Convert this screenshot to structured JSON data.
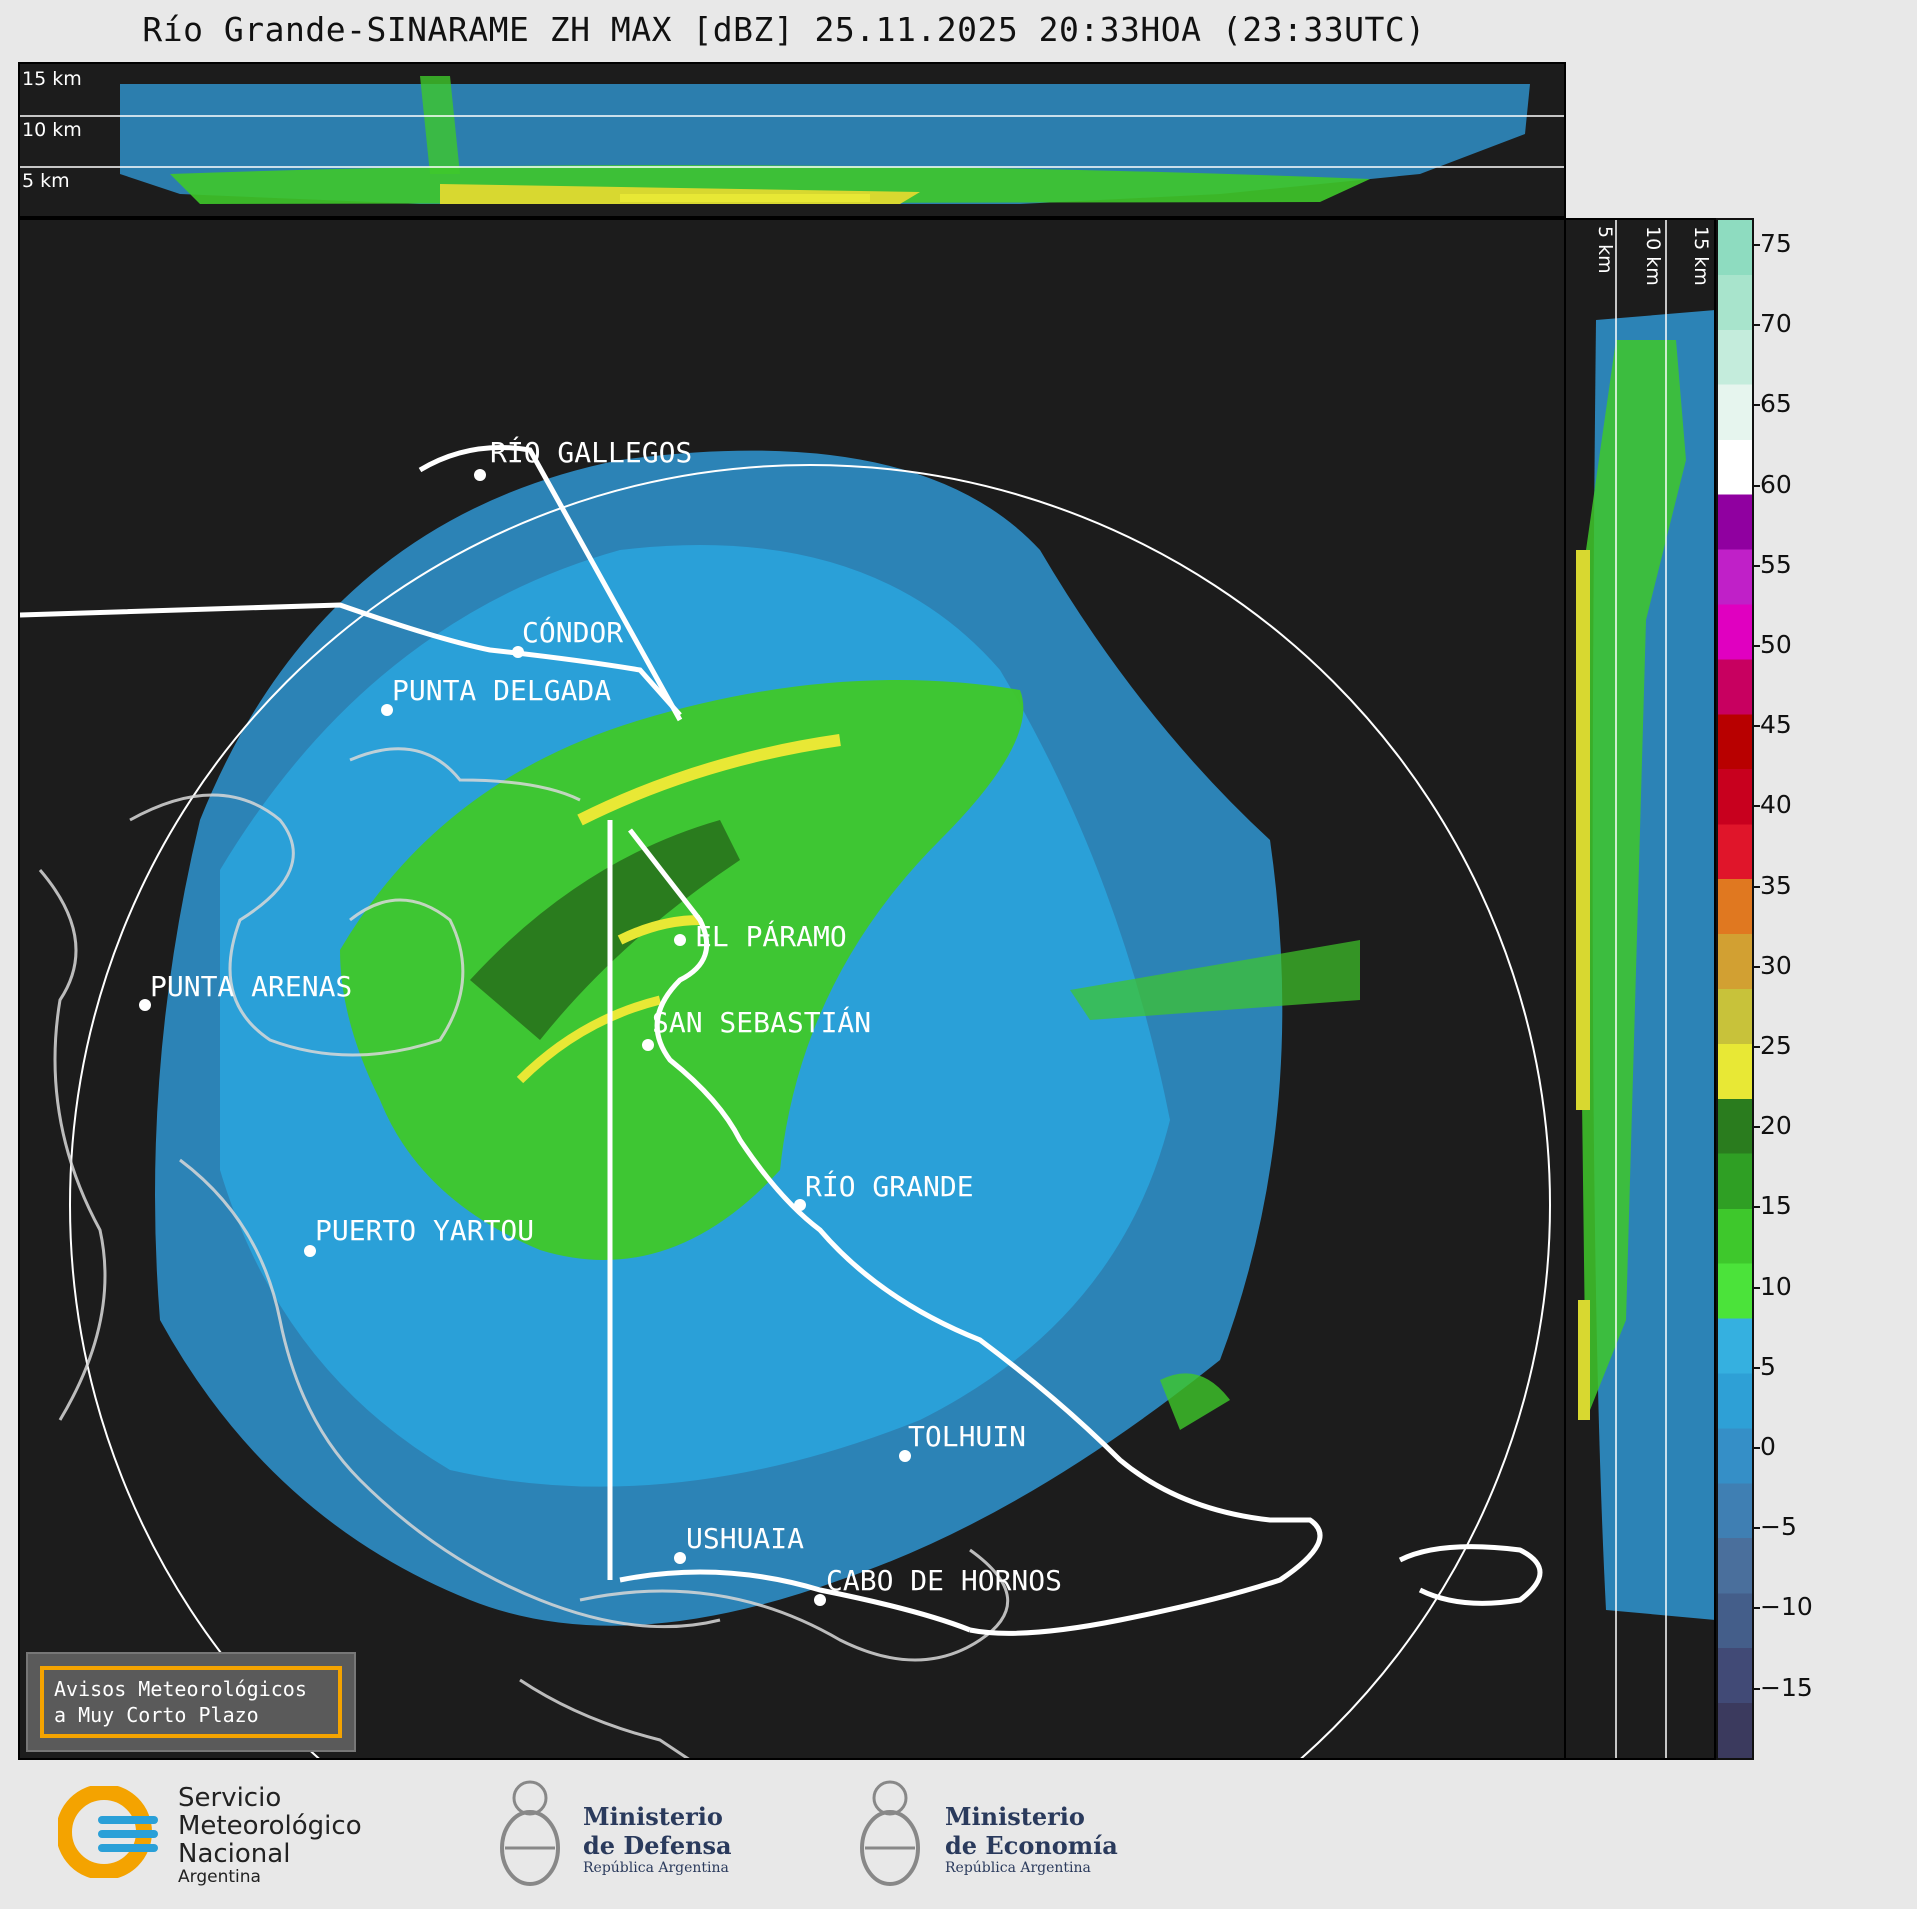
{
  "title": "Río Grande-SINARAME ZH MAX [dBZ] 25.11.2025 20:33HOA (23:33UTC)",
  "height_labels": [
    "15 km",
    "10 km",
    "5 km"
  ],
  "places": [
    "RÍO GALLEGOS",
    "CÓNDOR",
    "PUNTA DELGADA",
    "EL PÁRAMO",
    "PUNTA ARENAS",
    "SAN SEBASTIÁN",
    "RÍO GRANDE",
    "PUERTO YARTOU",
    "TOLHUIN",
    "USHUAIA",
    "CABO DE HORNOS"
  ],
  "colorbar": {
    "label_unit": "dBZ",
    "ticks": [
      "75",
      "70",
      "65",
      "60",
      "55",
      "50",
      "45",
      "40",
      "35",
      "30",
      "25",
      "20",
      "15",
      "10",
      "5",
      "0",
      "−5",
      "−10",
      "−15"
    ],
    "colors": [
      "#3b3a5e",
      "#414a76",
      "#445e8a",
      "#4a6f9c",
      "#3f7fb3",
      "#358fc7",
      "#2ea0d6",
      "#35b0e0",
      "#4be33a",
      "#3ec82c",
      "#2f9f24",
      "#2a7c1e",
      "#e8e835",
      "#c8c23a",
      "#d2a032",
      "#e07820",
      "#e0152a",
      "#c8001e",
      "#b80000",
      "#c80060",
      "#e000c0",
      "#c020c8",
      "#9000a0",
      "#ffffff",
      "#e6f5ee",
      "#c4ecdc",
      "#a8e4cc",
      "#8edcc0"
    ]
  },
  "alert": {
    "line1": "Avisos Meteorológicos",
    "line2": "a Muy Corto Plazo"
  },
  "logos": {
    "smn": {
      "line1": "Servicio",
      "line2": "Meteorológico",
      "line3": "Nacional",
      "line4": "Argentina"
    },
    "defensa": {
      "line1": "Ministerio",
      "line2": "de Defensa",
      "line3": "República Argentina"
    },
    "economia": {
      "line1": "Ministerio",
      "line2": "de Economía",
      "line3": "República Argentina"
    }
  }
}
